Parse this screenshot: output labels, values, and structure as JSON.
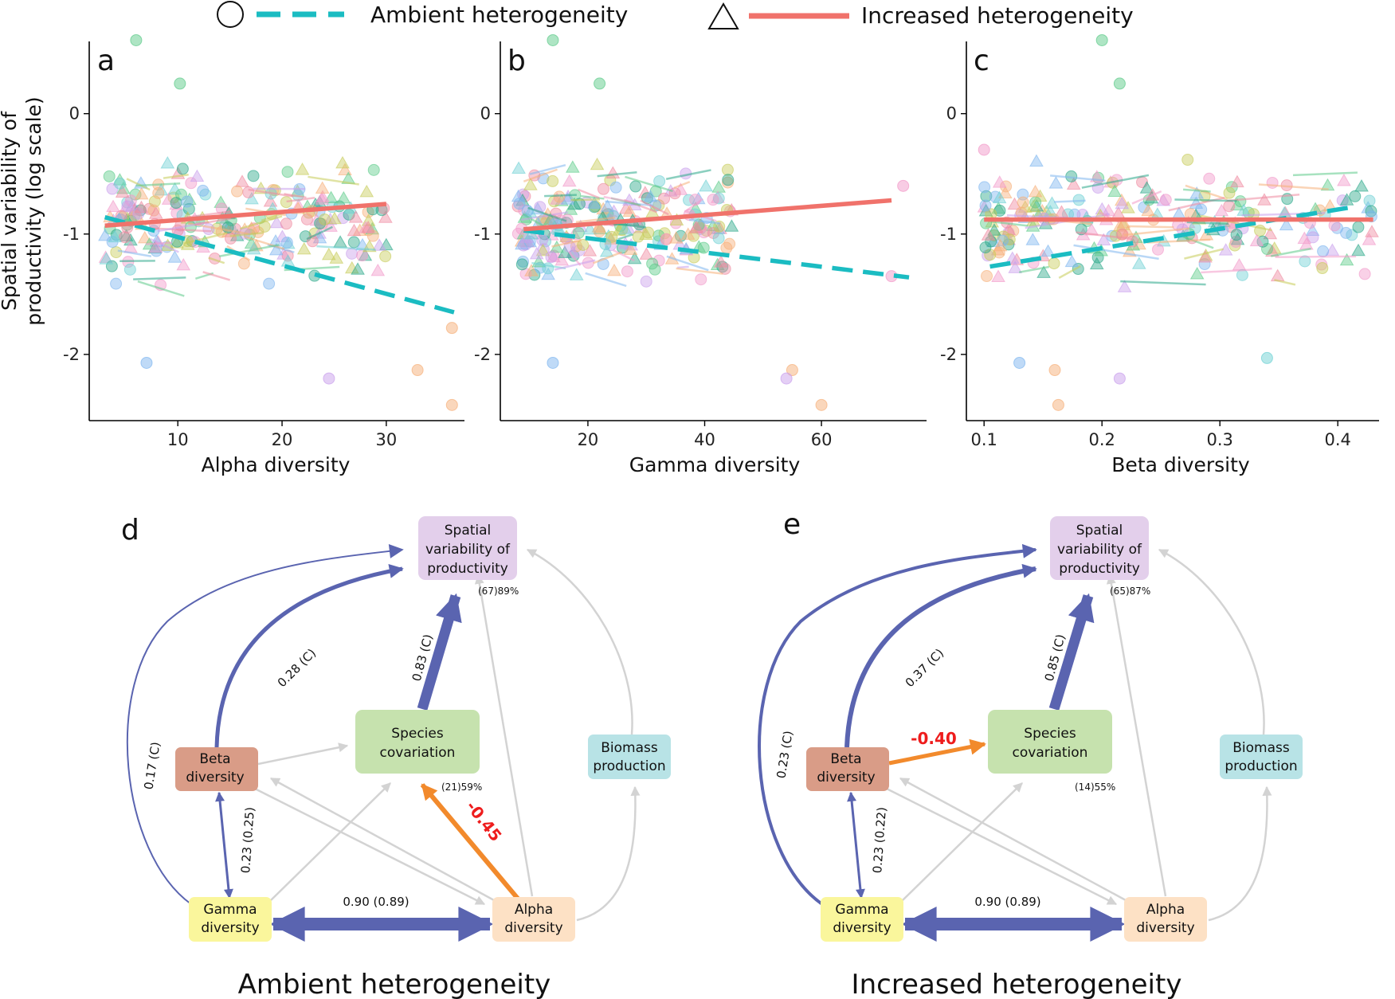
{
  "legend": [
    {
      "marker": "circle",
      "line": "dashed",
      "color": "#1bbcc2",
      "label": "Ambient heterogeneity"
    },
    {
      "marker": "triangle",
      "line": "solid",
      "color": "#f0726b",
      "label": "Increased heterogeneity"
    }
  ],
  "y_axis_title": [
    "Spatial variability of",
    "productivity (log scale)"
  ],
  "colors": {
    "ambient": "#1bbcc2",
    "increased": "#f0726b",
    "scatter_palette": [
      "#5ecb8a",
      "#f29ac9",
      "#6fd1d4",
      "#c9a0ec",
      "#f6b07a",
      "#7fb6ef",
      "#c7cc58",
      "#ef8aa0",
      "#2ca88a"
    ],
    "blue_path": "#5a64b0",
    "orange_path": "#f28a2c",
    "grey_path": "#d3d3d3"
  },
  "chart_data": [
    {
      "type": "scatter",
      "panel": "a",
      "xlabel": "Alpha diversity",
      "ylabel": "Spatial variability of productivity (log scale)",
      "xlim": [
        1.5,
        37.5
      ],
      "ylim": [
        -2.55,
        0.6
      ],
      "xticks": [
        "10",
        "20",
        "30"
      ],
      "xtick_values": [
        10,
        20,
        30
      ],
      "yticks": [
        "0",
        "-1",
        "-2"
      ],
      "ytick_values": [
        0,
        -1,
        -2
      ],
      "x_spread": [
        3,
        30
      ],
      "outliers": [
        {
          "x": 6,
          "y": 0.61,
          "c": 0
        },
        {
          "x": 10.2,
          "y": 0.25,
          "c": 0
        },
        {
          "x": 36.3,
          "y": -2.42,
          "c": 4
        },
        {
          "x": 33,
          "y": -2.13,
          "c": 4
        },
        {
          "x": 36.3,
          "y": -1.78,
          "c": 4
        },
        {
          "x": 24.5,
          "y": -2.2,
          "c": 3
        },
        {
          "x": 7,
          "y": -2.07,
          "c": 5
        }
      ],
      "series": [
        {
          "name": "Ambient heterogeneity",
          "x": [
            3,
            36.5
          ],
          "y": [
            -0.86,
            -1.65
          ]
        },
        {
          "name": "Increased heterogeneity",
          "x": [
            3,
            30
          ],
          "y": [
            -0.93,
            -0.75
          ]
        }
      ]
    },
    {
      "type": "scatter",
      "panel": "b",
      "xlabel": "Gamma diversity",
      "ylabel": "",
      "xlim": [
        5,
        78
      ],
      "ylim": [
        -2.55,
        0.6
      ],
      "xticks": [
        "20",
        "40",
        "60"
      ],
      "xtick_values": [
        20,
        40,
        60
      ],
      "yticks": [
        "0",
        "-1",
        "-2"
      ],
      "ytick_values": [
        0,
        -1,
        -2
      ],
      "x_spread": [
        8,
        45
      ],
      "outliers": [
        {
          "x": 14,
          "y": 0.61,
          "c": 0
        },
        {
          "x": 22,
          "y": 0.25,
          "c": 0
        },
        {
          "x": 60,
          "y": -2.42,
          "c": 4
        },
        {
          "x": 55,
          "y": -2.13,
          "c": 4
        },
        {
          "x": 54,
          "y": -2.2,
          "c": 3
        },
        {
          "x": 72,
          "y": -1.35,
          "c": 1
        },
        {
          "x": 74,
          "y": -0.6,
          "c": 1
        },
        {
          "x": 14,
          "y": -2.07,
          "c": 5
        }
      ],
      "series": [
        {
          "name": "Ambient heterogeneity",
          "x": [
            9,
            75
          ],
          "y": [
            -0.97,
            -1.36
          ]
        },
        {
          "name": "Increased heterogeneity",
          "x": [
            9,
            72
          ],
          "y": [
            -0.96,
            -0.72
          ]
        }
      ]
    },
    {
      "type": "scatter",
      "panel": "c",
      "xlabel": "Beta diversity",
      "ylabel": "",
      "xlim": [
        0.085,
        0.435
      ],
      "ylim": [
        -2.55,
        0.6
      ],
      "xticks": [
        "0.1",
        "0.2",
        "0.3",
        "0.4"
      ],
      "xtick_values": [
        0.1,
        0.2,
        0.3,
        0.4
      ],
      "yticks": [
        "0",
        "-1",
        "-2"
      ],
      "ytick_values": [
        0,
        -1,
        -2
      ],
      "x_spread": [
        0.1,
        0.43
      ],
      "outliers": [
        {
          "x": 0.2,
          "y": 0.61,
          "c": 0
        },
        {
          "x": 0.215,
          "y": 0.25,
          "c": 0
        },
        {
          "x": 0.163,
          "y": -2.42,
          "c": 4
        },
        {
          "x": 0.16,
          "y": -2.13,
          "c": 4
        },
        {
          "x": 0.215,
          "y": -2.2,
          "c": 3
        },
        {
          "x": 0.13,
          "y": -2.07,
          "c": 5
        },
        {
          "x": 0.34,
          "y": -2.03,
          "c": 2
        },
        {
          "x": 0.1,
          "y": -0.3,
          "c": 1
        }
      ],
      "series": [
        {
          "name": "Ambient heterogeneity",
          "x": [
            0.105,
            0.41
          ],
          "y": [
            -1.27,
            -0.78
          ]
        },
        {
          "name": "Increased heterogeneity",
          "x": [
            0.1,
            0.43
          ],
          "y": [
            -0.88,
            -0.88
          ]
        }
      ]
    }
  ],
  "sem": [
    {
      "panel": "d",
      "title": "Ambient heterogeneity",
      "nodes": {
        "spatial": {
          "lines": [
            "Spatial",
            "variability of",
            "productivity"
          ],
          "color": "#e3cfeb",
          "r2": "(67)89%"
        },
        "species": {
          "lines": [
            "Species",
            "covariation"
          ],
          "color": "#c6e2ae",
          "r2": "(21)59%"
        },
        "beta": {
          "lines": [
            "Beta",
            "diversity"
          ],
          "color": "#d99c87",
          "r2": ""
        },
        "biomass": {
          "lines": [
            "Biomass",
            "production"
          ],
          "color": "#b8e3e6",
          "r2": ""
        },
        "gamma": {
          "lines": [
            "Gamma",
            "diversity"
          ],
          "color": "#faf69c",
          "r2": ""
        },
        "alpha": {
          "lines": [
            "Alpha",
            "diversity"
          ],
          "color": "#fde1c5",
          "r2": ""
        }
      },
      "edges": [
        {
          "from": "gamma",
          "to": "spatial",
          "label": "0.17 (C)",
          "width": 2,
          "color": "blue",
          "sign": "positive"
        },
        {
          "from": "beta",
          "to": "spatial",
          "label": "0.28 (C)",
          "width": 5,
          "color": "blue",
          "sign": "positive"
        },
        {
          "from": "species",
          "to": "spatial",
          "label": "0.83 (C)",
          "width": 13,
          "color": "blue",
          "sign": "positive"
        },
        {
          "from": "alpha",
          "to": "species",
          "label": "-0.45",
          "width": 6,
          "color": "orange",
          "sign": "negative"
        },
        {
          "from": "beta",
          "to": "gamma",
          "label": "0.23 (0.25)",
          "width": 3,
          "color": "blue",
          "sign": "positive"
        },
        {
          "from": "gamma",
          "to": "alpha",
          "label": "0.90 (0.89)",
          "width": 16,
          "color": "blue",
          "sign": "positive"
        }
      ]
    },
    {
      "panel": "e",
      "title": "Increased heterogeneity",
      "nodes": {
        "spatial": {
          "lines": [
            "Spatial",
            "variability of",
            "productivity"
          ],
          "color": "#e3cfeb",
          "r2": "(65)87%"
        },
        "species": {
          "lines": [
            "Species",
            "covariation"
          ],
          "color": "#c6e2ae",
          "r2": "(14)55%"
        },
        "beta": {
          "lines": [
            "Beta",
            "diversity"
          ],
          "color": "#d99c87",
          "r2": ""
        },
        "biomass": {
          "lines": [
            "Biomass",
            "production"
          ],
          "color": "#b8e3e6",
          "r2": ""
        },
        "gamma": {
          "lines": [
            "Gamma",
            "diversity"
          ],
          "color": "#faf69c",
          "r2": ""
        },
        "alpha": {
          "lines": [
            "Alpha",
            "diversity"
          ],
          "color": "#fde1c5",
          "r2": ""
        }
      },
      "edges": [
        {
          "from": "gamma",
          "to": "spatial",
          "label": "0.23 (C)",
          "width": 4,
          "color": "blue",
          "sign": "positive"
        },
        {
          "from": "beta",
          "to": "spatial",
          "label": "0.37 (C)",
          "width": 6,
          "color": "blue",
          "sign": "positive"
        },
        {
          "from": "species",
          "to": "spatial",
          "label": "0.85 (C)",
          "width": 13,
          "color": "blue",
          "sign": "positive"
        },
        {
          "from": "beta",
          "to": "species",
          "label": "-0.40",
          "width": 5,
          "color": "orange",
          "sign": "negative"
        },
        {
          "from": "beta",
          "to": "gamma",
          "label": "0.23 (0.22)",
          "width": 3,
          "color": "blue",
          "sign": "positive"
        },
        {
          "from": "gamma",
          "to": "alpha",
          "label": "0.90 (0.89)",
          "width": 16,
          "color": "blue",
          "sign": "positive"
        }
      ]
    }
  ]
}
